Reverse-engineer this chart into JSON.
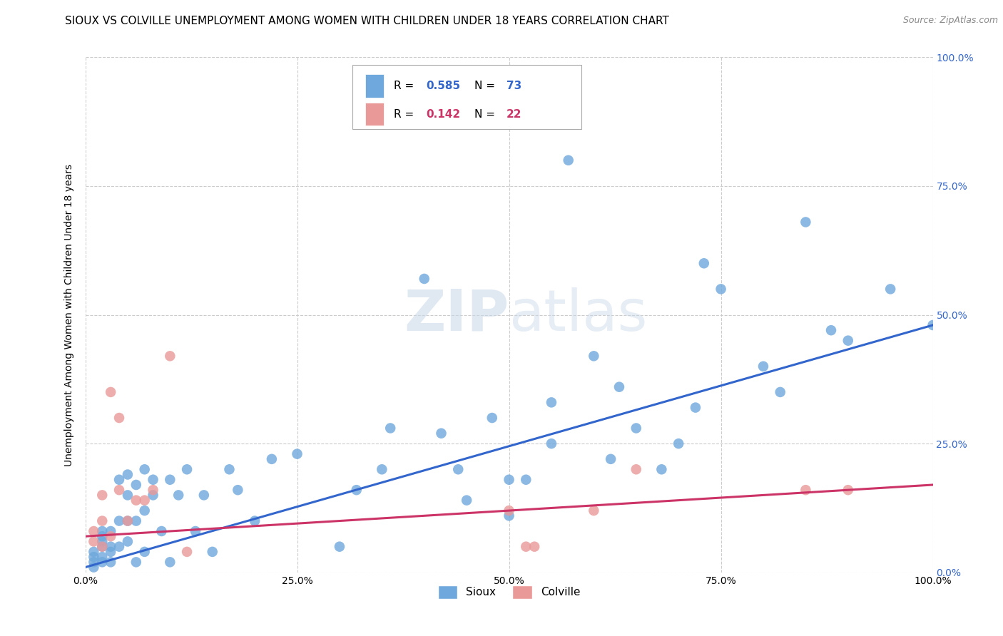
{
  "title": "SIOUX VS COLVILLE UNEMPLOYMENT AMONG WOMEN WITH CHILDREN UNDER 18 YEARS CORRELATION CHART",
  "source": "Source: ZipAtlas.com",
  "ylabel": "Unemployment Among Women with Children Under 18 years",
  "xlim": [
    0,
    1.0
  ],
  "ylim": [
    0,
    1.0
  ],
  "xtick_vals": [
    0.0,
    0.25,
    0.5,
    0.75,
    1.0
  ],
  "ytick_vals": [
    0.0,
    0.25,
    0.5,
    0.75,
    1.0
  ],
  "right_ytick_labels": [
    "100.0%",
    "75.0%",
    "50.0%",
    "25.0%",
    "0.0%"
  ],
  "right_ytick_vals": [
    1.0,
    0.75,
    0.5,
    0.25,
    0.0
  ],
  "sioux_color": "#6fa8dc",
  "colville_color": "#ea9999",
  "sioux_line_color": "#3366cc",
  "colville_line_color": "#cc3366",
  "sioux_R": "0.585",
  "sioux_N": "73",
  "colville_R": "0.142",
  "colville_N": "22",
  "watermark": "ZIPatlas",
  "background_color": "#ffffff",
  "grid_color": "#cccccc",
  "sioux_x": [
    0.01,
    0.01,
    0.01,
    0.01,
    0.02,
    0.02,
    0.02,
    0.02,
    0.02,
    0.02,
    0.03,
    0.03,
    0.03,
    0.03,
    0.04,
    0.04,
    0.04,
    0.05,
    0.05,
    0.05,
    0.05,
    0.06,
    0.06,
    0.06,
    0.07,
    0.07,
    0.07,
    0.08,
    0.08,
    0.09,
    0.1,
    0.1,
    0.11,
    0.12,
    0.13,
    0.14,
    0.15,
    0.17,
    0.18,
    0.2,
    0.22,
    0.25,
    0.3,
    0.32,
    0.35,
    0.36,
    0.4,
    0.42,
    0.44,
    0.45,
    0.48,
    0.5,
    0.5,
    0.52,
    0.55,
    0.55,
    0.57,
    0.6,
    0.62,
    0.63,
    0.65,
    0.68,
    0.7,
    0.72,
    0.73,
    0.75,
    0.8,
    0.82,
    0.85,
    0.88,
    0.9,
    0.95,
    1.0
  ],
  "sioux_y": [
    0.01,
    0.02,
    0.03,
    0.04,
    0.02,
    0.03,
    0.05,
    0.06,
    0.07,
    0.08,
    0.02,
    0.04,
    0.05,
    0.08,
    0.05,
    0.1,
    0.18,
    0.06,
    0.1,
    0.15,
    0.19,
    0.02,
    0.1,
    0.17,
    0.04,
    0.12,
    0.2,
    0.15,
    0.18,
    0.08,
    0.02,
    0.18,
    0.15,
    0.2,
    0.08,
    0.15,
    0.04,
    0.2,
    0.16,
    0.1,
    0.22,
    0.23,
    0.05,
    0.16,
    0.2,
    0.28,
    0.57,
    0.27,
    0.2,
    0.14,
    0.3,
    0.11,
    0.18,
    0.18,
    0.25,
    0.33,
    0.8,
    0.42,
    0.22,
    0.36,
    0.28,
    0.2,
    0.25,
    0.32,
    0.6,
    0.55,
    0.4,
    0.35,
    0.68,
    0.47,
    0.45,
    0.55,
    0.48
  ],
  "colville_x": [
    0.01,
    0.01,
    0.02,
    0.02,
    0.02,
    0.03,
    0.03,
    0.04,
    0.04,
    0.05,
    0.06,
    0.07,
    0.08,
    0.1,
    0.12,
    0.5,
    0.52,
    0.53,
    0.6,
    0.65,
    0.85,
    0.9
  ],
  "colville_y": [
    0.06,
    0.08,
    0.1,
    0.15,
    0.05,
    0.07,
    0.35,
    0.16,
    0.3,
    0.1,
    0.14,
    0.14,
    0.16,
    0.42,
    0.04,
    0.12,
    0.05,
    0.05,
    0.12,
    0.2,
    0.16,
    0.16
  ],
  "sioux_trendline_x": [
    0.0,
    1.0
  ],
  "sioux_trendline_y": [
    0.01,
    0.48
  ],
  "colville_trendline_x": [
    0.0,
    1.0
  ],
  "colville_trendline_y": [
    0.07,
    0.17
  ]
}
